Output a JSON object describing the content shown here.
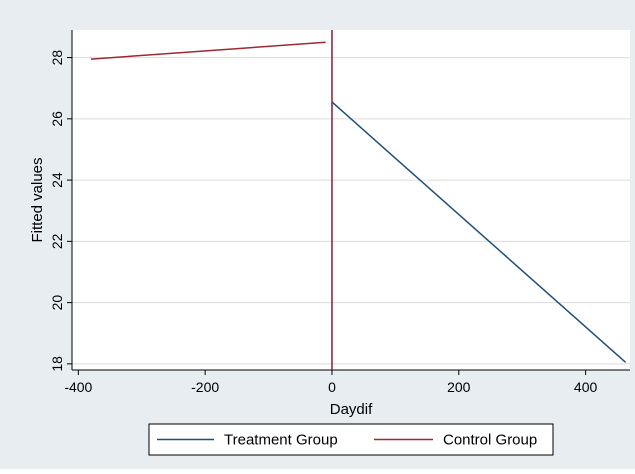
{
  "chart_data": {
    "type": "line",
    "title": "",
    "xlabel": "Daydif",
    "ylabel": "Fitted values",
    "xlim": [
      -410,
      470
    ],
    "ylim": [
      17.8,
      28.9
    ],
    "x_ticks": [
      -400,
      -200,
      0,
      200,
      400
    ],
    "x_tick_labels": [
      "-400",
      "-200",
      "0",
      "200",
      "400"
    ],
    "y_ticks": [
      18,
      20,
      22,
      24,
      26,
      28
    ],
    "y_tick_labels": [
      "18",
      "20",
      "22",
      "24",
      "26",
      "28"
    ],
    "grid": true,
    "legend_position": "bottom",
    "vertical_reference_line": {
      "x": 0,
      "color": "#8b1c2b"
    },
    "series": [
      {
        "name": "Treatment Group",
        "color": "#1f4e79",
        "x": [
          0,
          463
        ],
        "y": [
          26.55,
          18.05
        ]
      },
      {
        "name": "Control Group",
        "color": "#9b2a30",
        "x": [
          -380,
          -10
        ],
        "y": [
          27.95,
          28.5
        ]
      }
    ]
  },
  "colors": {
    "outer_background": "#e8edf2",
    "plot_background": "#ffffff",
    "grid": "#dcdcdc"
  }
}
